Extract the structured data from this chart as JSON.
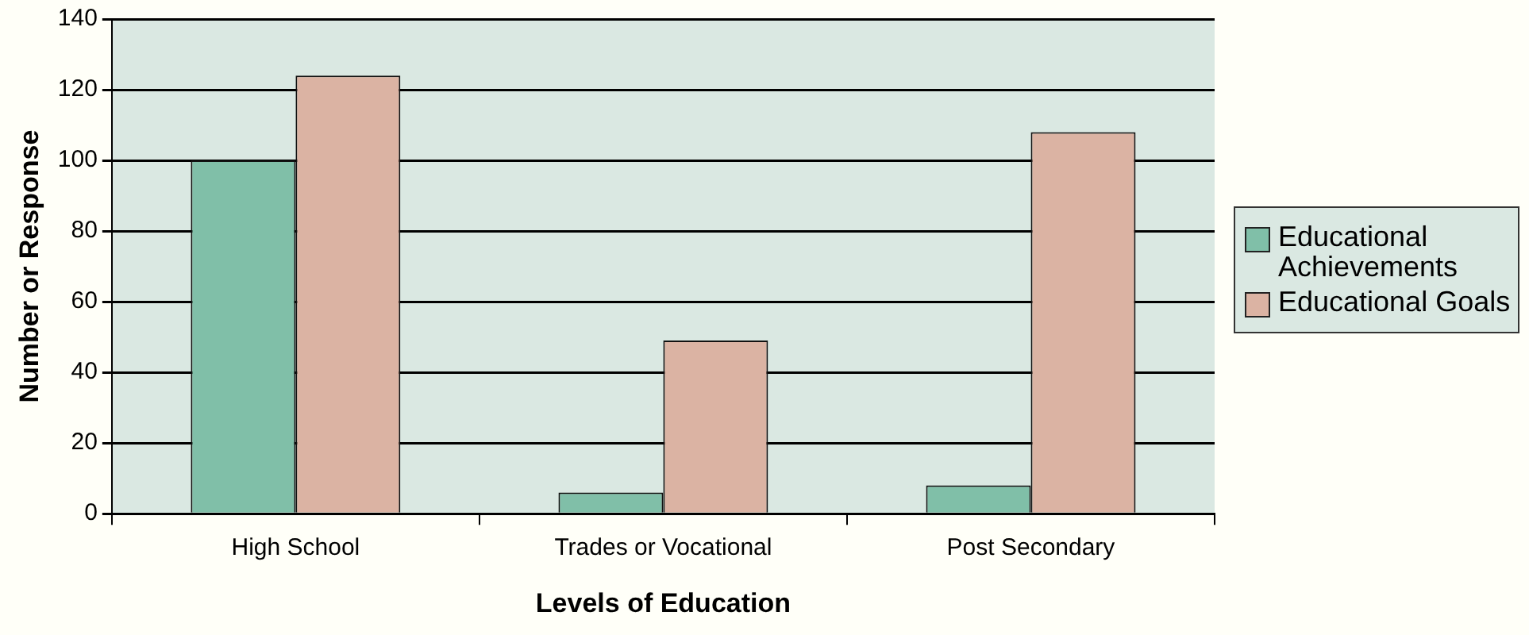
{
  "chart_data": {
    "type": "bar",
    "xlabel": "Levels of Education",
    "ylabel": "Number or Response",
    "categories": [
      "High School",
      "Trades or Vocational",
      "Post Secondary"
    ],
    "series": [
      {
        "name": "Educational Achievements",
        "color": "#80bfa8",
        "values": [
          100,
          6,
          8
        ]
      },
      {
        "name": "Educational Goals",
        "color": "#dbb3a3",
        "values": [
          124,
          49,
          108
        ]
      }
    ],
    "ylim": [
      0,
      140
    ],
    "yticks": [
      0,
      20,
      40,
      60,
      80,
      100,
      120,
      140
    ],
    "grid": "y",
    "legend": "right"
  }
}
